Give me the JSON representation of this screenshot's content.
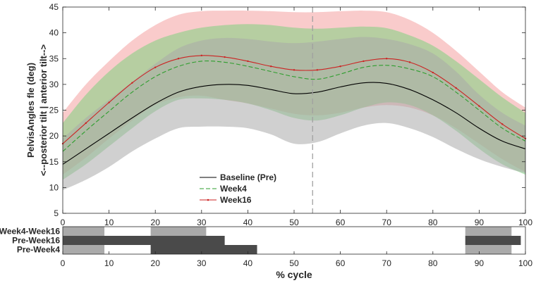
{
  "chart_data": {
    "type": "line",
    "ylabel_lines": [
      "PelvisAngles fle (deg)",
      "<--posterior tilt | anterior tilt-->"
    ],
    "xlabel": "% cycle",
    "xlim": [
      0,
      100
    ],
    "ylim": [
      5,
      45
    ],
    "x_ticks": [
      0,
      10,
      20,
      30,
      40,
      50,
      60,
      70,
      80,
      90,
      100
    ],
    "y_ticks": [
      5,
      10,
      15,
      20,
      25,
      30,
      35,
      40,
      45
    ],
    "vline_x": 54,
    "x": [
      0,
      5,
      10,
      15,
      20,
      25,
      30,
      35,
      40,
      45,
      50,
      55,
      60,
      65,
      70,
      75,
      80,
      85,
      90,
      95,
      100
    ],
    "series": [
      {
        "name": "Baseline (Pre)",
        "color": "#000000",
        "band_color": "#aaaaaa",
        "style": "solid",
        "mean": [
          14.5,
          17.5,
          20.5,
          23.5,
          26.3,
          28.5,
          29.6,
          30.0,
          29.8,
          29.0,
          28.2,
          28.5,
          29.5,
          30.3,
          30.2,
          29.0,
          27.0,
          24.5,
          21.5,
          19.0,
          17.5
        ],
        "lower": [
          9.5,
          11.5,
          14.0,
          17.0,
          19.5,
          21.5,
          21.8,
          21.8,
          21.5,
          20.3,
          18.5,
          18.8,
          20.5,
          22.0,
          22.5,
          21.5,
          19.8,
          17.5,
          15.5,
          14.0,
          12.8
        ],
        "upper": [
          19.5,
          23.5,
          27.0,
          30.5,
          34.0,
          37.0,
          38.5,
          39.0,
          38.8,
          38.3,
          38.0,
          38.3,
          38.8,
          39.2,
          38.8,
          37.8,
          36.0,
          32.5,
          28.0,
          24.5,
          22.0
        ]
      },
      {
        "name": "Week4",
        "color": "#2e9e2e",
        "band_color": "#7fd17f",
        "style": "dashed",
        "mean": [
          17.0,
          21.0,
          24.8,
          28.5,
          31.5,
          33.5,
          34.5,
          34.3,
          33.5,
          32.5,
          31.5,
          31.0,
          32.0,
          33.3,
          33.7,
          33.0,
          31.5,
          28.5,
          25.0,
          21.5,
          19.0
        ],
        "lower": [
          11.5,
          14.5,
          18.0,
          21.5,
          24.8,
          27.0,
          27.3,
          27.0,
          26.3,
          25.0,
          23.5,
          23.0,
          24.0,
          25.5,
          26.5,
          26.0,
          24.0,
          21.0,
          17.5,
          14.5,
          12.5
        ],
        "upper": [
          22.5,
          28.0,
          32.5,
          36.0,
          38.5,
          40.0,
          41.0,
          41.5,
          41.7,
          41.5,
          41.0,
          40.8,
          41.0,
          41.2,
          40.9,
          39.5,
          37.5,
          34.5,
          31.0,
          27.5,
          24.5
        ]
      },
      {
        "name": "Week16",
        "color": "#cc2222",
        "band_color": "#f4a0a0",
        "style": "dotted-line",
        "mean": [
          18.5,
          22.5,
          26.5,
          30.3,
          33.3,
          35.0,
          35.6,
          35.3,
          34.5,
          33.5,
          32.8,
          32.8,
          33.5,
          34.5,
          35.0,
          34.3,
          32.3,
          29.3,
          25.8,
          22.3,
          19.5
        ],
        "lower": [
          12.5,
          15.8,
          19.5,
          23.0,
          26.0,
          27.5,
          27.8,
          27.0,
          26.3,
          25.3,
          24.3,
          24.0,
          24.5,
          25.5,
          26.0,
          25.5,
          24.0,
          21.5,
          18.5,
          15.5,
          13.0
        ],
        "upper": [
          24.5,
          30.0,
          34.5,
          38.5,
          41.5,
          43.5,
          44.2,
          44.3,
          44.3,
          44.2,
          44.0,
          44.0,
          44.2,
          44.3,
          44.0,
          42.5,
          40.0,
          36.5,
          32.5,
          28.5,
          25.5
        ]
      }
    ],
    "legend": {
      "placement": "lower-center",
      "entries": [
        "Baseline (Pre)",
        "Week4",
        "Week16"
      ]
    },
    "significance": {
      "rows": [
        {
          "label": "Week4-Week16",
          "color": "#aaaaaa",
          "intervals": [
            [
              0,
              9
            ],
            [
              19,
              31
            ],
            [
              87,
              97
            ]
          ]
        },
        {
          "label": "Pre-Week16",
          "color": "#4a4a4a",
          "intervals": [
            [
              0,
              35
            ],
            [
              87,
              99
            ]
          ]
        },
        {
          "label": "Pre-Week4",
          "color": "#4a4a4a",
          "intervals": [
            [
              19,
              42
            ]
          ]
        }
      ],
      "extra_light": [
        {
          "row": 1,
          "interval": [
            0,
            9
          ]
        },
        {
          "row": 1,
          "interval": [
            19,
            31
          ]
        },
        {
          "row": 2,
          "interval": [
            0,
            9
          ]
        },
        {
          "row": 2,
          "interval": [
            87,
            97
          ]
        }
      ]
    }
  }
}
